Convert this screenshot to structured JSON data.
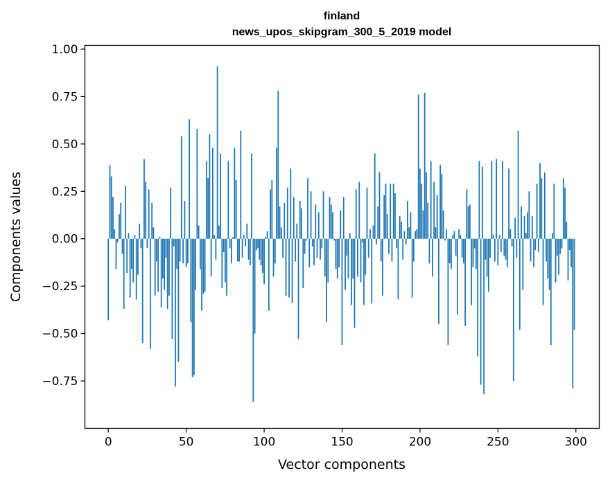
{
  "chart_data": {
    "type": "bar",
    "title": "finland",
    "subtitle": "news_upos_skipgram_300_5_2019 model",
    "xlabel": "Vector components",
    "ylabel": "Components values",
    "xlim": [
      -15,
      315
    ],
    "ylim": [
      -1.0,
      1.02
    ],
    "xticks": [
      0,
      50,
      100,
      150,
      200,
      250,
      300
    ],
    "yticks": [
      -0.75,
      -0.5,
      -0.25,
      0.0,
      0.25,
      0.5,
      0.75,
      1.0
    ],
    "ytick_labels": [
      "−0.75",
      "−0.50",
      "−0.25",
      "0.00",
      "0.25",
      "0.50",
      "0.75",
      "1.00"
    ],
    "bar_color": "#1f77b4",
    "legend": null,
    "grid": false,
    "x": [
      0,
      1,
      2,
      3,
      4,
      5,
      6,
      7,
      8,
      9,
      10,
      11,
      12,
      13,
      14,
      15,
      16,
      17,
      18,
      19,
      20,
      21,
      22,
      23,
      24,
      25,
      26,
      27,
      28,
      29,
      30,
      31,
      32,
      33,
      34,
      35,
      36,
      37,
      38,
      39,
      40,
      41,
      42,
      43,
      44,
      45,
      46,
      47,
      48,
      49,
      50,
      51,
      52,
      53,
      54,
      55,
      56,
      57,
      58,
      59,
      60,
      61,
      62,
      63,
      64,
      65,
      66,
      67,
      68,
      69,
      70,
      71,
      72,
      73,
      74,
      75,
      76,
      77,
      78,
      79,
      80,
      81,
      82,
      83,
      84,
      85,
      86,
      87,
      88,
      89,
      90,
      91,
      92,
      93,
      94,
      95,
      96,
      97,
      98,
      99,
      100,
      101,
      102,
      103,
      104,
      105,
      106,
      107,
      108,
      109,
      110,
      111,
      112,
      113,
      114,
      115,
      116,
      117,
      118,
      119,
      120,
      121,
      122,
      123,
      124,
      125,
      126,
      127,
      128,
      129,
      130,
      131,
      132,
      133,
      134,
      135,
      136,
      137,
      138,
      139,
      140,
      141,
      142,
      143,
      144,
      145,
      146,
      147,
      148,
      149,
      150,
      151,
      152,
      153,
      154,
      155,
      156,
      157,
      158,
      159,
      160,
      161,
      162,
      163,
      164,
      165,
      166,
      167,
      168,
      169,
      170,
      171,
      172,
      173,
      174,
      175,
      176,
      177,
      178,
      179,
      180,
      181,
      182,
      183,
      184,
      185,
      186,
      187,
      188,
      189,
      190,
      191,
      192,
      193,
      194,
      195,
      196,
      197,
      198,
      199,
      200,
      201,
      202,
      203,
      204,
      205,
      206,
      207,
      208,
      209,
      210,
      211,
      212,
      213,
      214,
      215,
      216,
      217,
      218,
      219,
      220,
      221,
      222,
      223,
      224,
      225,
      226,
      227,
      228,
      229,
      230,
      231,
      232,
      233,
      234,
      235,
      236,
      237,
      238,
      239,
      240,
      241,
      242,
      243,
      244,
      245,
      246,
      247,
      248,
      249,
      250,
      251,
      252,
      253,
      254,
      255,
      256,
      257,
      258,
      259,
      260,
      261,
      262,
      263,
      264,
      265,
      266,
      267,
      268,
      269,
      270,
      271,
      272,
      273,
      274,
      275,
      276,
      277,
      278,
      279,
      280,
      281,
      282,
      283,
      284,
      285,
      286,
      287,
      288,
      289,
      290,
      291,
      292,
      293,
      294,
      295,
      296,
      297,
      298,
      299
    ],
    "values": [
      -0.43,
      0.39,
      0.33,
      0.22,
      0.05,
      -0.16,
      -0.02,
      0.13,
      0.19,
      -0.08,
      -0.37,
      0.28,
      -0.18,
      0.03,
      -0.31,
      -0.16,
      -0.23,
      0.02,
      -0.32,
      -0.19,
      0.08,
      -0.05,
      -0.55,
      0.42,
      0.3,
      -0.05,
      0.26,
      -0.58,
      0.19,
      0.06,
      -0.3,
      -0.12,
      -0.28,
      0.01,
      -0.36,
      -0.21,
      -0.27,
      -0.1,
      -0.37,
      -0.3,
      0.27,
      -0.53,
      -0.04,
      -0.78,
      -0.16,
      -0.65,
      -0.12,
      0.54,
      -0.13,
      0.2,
      -0.15,
      -0.13,
      0.63,
      -0.44,
      -0.73,
      -0.72,
      -0.27,
      0.58,
      0.07,
      -0.16,
      -0.38,
      -0.29,
      -0.28,
      0.41,
      0.32,
      0.55,
      -0.2,
      0.48,
      0.02,
      -0.11,
      0.91,
      0.07,
      0.45,
      -0.26,
      -0.07,
      -0.23,
      -0.3,
      0.41,
      -0.05,
      -0.13,
      0.01,
      0.48,
      0.31,
      -0.12,
      -0.12,
      0.57,
      -0.1,
      0.02,
      -0.04,
      0.08,
      -0.11,
      -0.14,
      0.45,
      -0.86,
      -0.5,
      -0.06,
      -0.05,
      -0.11,
      -0.14,
      -0.18,
      -0.24,
      0.01,
      0.04,
      -0.38,
      0.26,
      0.31,
      -0.2,
      -0.13,
      0.48,
      0.78,
      0.17,
      0.06,
      -0.1,
      0.19,
      -0.3,
      0.27,
      -0.31,
      0.37,
      -0.34,
      0.22,
      -0.12,
      0.08,
      -0.53,
      0.2,
      0.16,
      -0.26,
      -0.08,
      -0.01,
      0.32,
      -0.15,
      0.25,
      -0.04,
      -0.14,
      0.18,
      -0.1,
      0.14,
      -0.11,
      -0.05,
      0.25,
      -0.2,
      -0.44,
      -0.23,
      0.22,
      0.18,
      0.14,
      -0.01,
      -0.16,
      -0.21,
      -0.15,
      0.15,
      -0.56,
      0.22,
      -0.27,
      -0.09,
      -0.21,
      0.03,
      -0.35,
      -0.21,
      -0.47,
      0.26,
      -0.2,
      0.3,
      -0.23,
      -0.02,
      -0.35,
      -0.19,
      0.27,
      -0.1,
      0.05,
      -0.34,
      0.07,
      0.45,
      -0.03,
      0.17,
      0.35,
      -0.12,
      -0.3,
      0.23,
      0.29,
      0.13,
      -0.08,
      0.29,
      -0.12,
      0.29,
      0.24,
      -0.05,
      -0.32,
      0.12,
      0.09,
      -0.11,
      0.04,
      -0.03,
      0.2,
      0.06,
      0.14,
      -0.31,
      -0.12,
      0.04,
      0.05,
      0.76,
      0.37,
      0.29,
      0.15,
      0.77,
      0.35,
      0.19,
      -0.13,
      0.41,
      -0.2,
      0.3,
      0.06,
      0.23,
      -0.45,
      0.39,
      0.34,
      0.15,
      -0.01,
      0.05,
      -0.56,
      -0.13,
      -0.16,
      0.02,
      0.04,
      -0.09,
      -0.4,
      0.05,
      0.02,
      -0.1,
      -0.13,
      -0.46,
      0.26,
      0.17,
      0.18,
      -0.35,
      -0.15,
      -0.05,
      -0.16,
      -0.62,
      0.41,
      -0.77,
      0.38,
      -0.82,
      -0.11,
      -0.2,
      -0.28,
      -0.1,
      0.41,
      0.02,
      -0.12,
      0.42,
      -0.14,
      0.02,
      -0.07,
      0.41,
      -0.09,
      -0.11,
      -0.15,
      0.37,
      0.05,
      -0.04,
      -0.75,
      0.11,
      -0.1,
      0.57,
      -0.48,
      0.17,
      -0.27,
      0.12,
      0.03,
      0.14,
      0.25,
      -0.12,
      0.12,
      -0.15,
      -0.06,
      0.29,
      -0.07,
      0.4,
      0.32,
      -0.35,
      0.35,
      -0.12,
      -0.21,
      -0.27,
      -0.56,
      0.03,
      0.29,
      -0.23,
      -0.09,
      -0.19,
      -0.08,
      -0.05,
      0.32,
      0.27,
      0.09,
      -0.22,
      -0.06,
      -0.15,
      -0.79,
      -0.48
    ]
  }
}
